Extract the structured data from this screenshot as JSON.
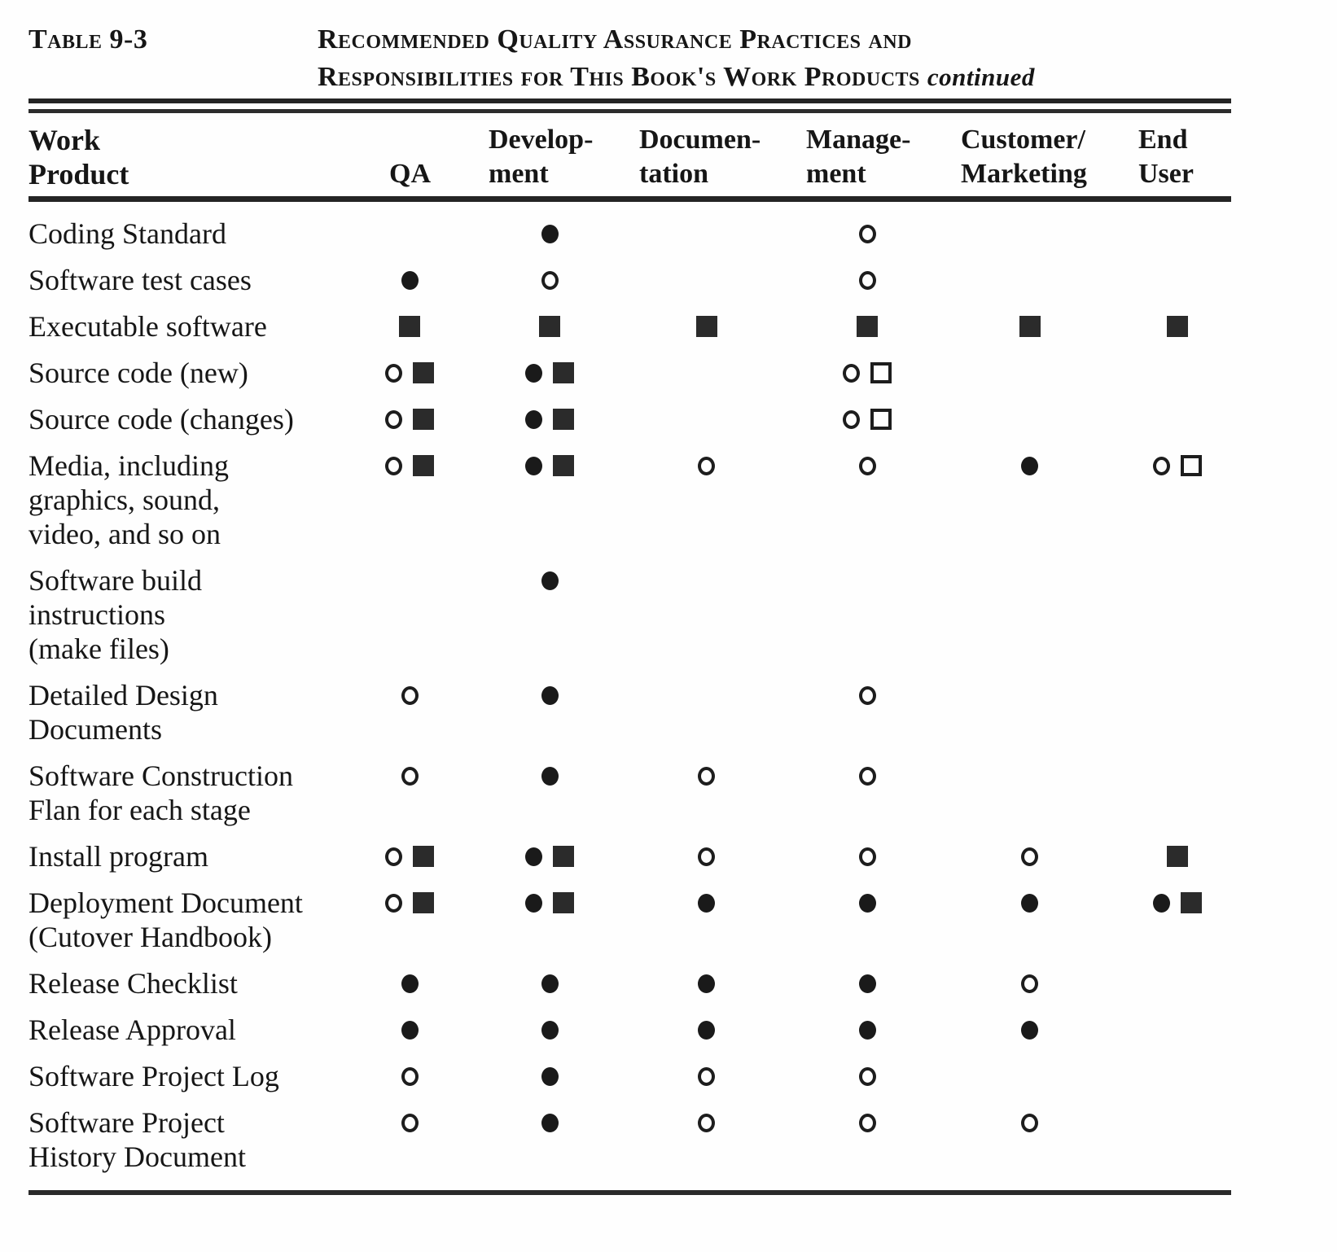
{
  "header": {
    "table_label": "Table 9-3",
    "title_line1": "Recommended Quality Assurance Practices and",
    "title_line2": "Responsibilities for This Book's Work Products",
    "title_continued": "continued"
  },
  "symbols": {
    "filled-circle": "●",
    "open-circle": "○",
    "filled-square": "■",
    "open-square": "□"
  },
  "table": {
    "columns": [
      {
        "l1": "Work",
        "l2": "Product"
      },
      {
        "l1": "",
        "l2": "QA"
      },
      {
        "l1": "Develop-",
        "l2": "ment"
      },
      {
        "l1": "Documen-",
        "l2": "tation"
      },
      {
        "l1": "Manage-",
        "l2": "ment"
      },
      {
        "l1": "Customer/",
        "l2": "Marketing"
      },
      {
        "l1": "End",
        "l2": "User"
      }
    ],
    "rows": [
      {
        "name_lines": [
          "Coding Standard"
        ],
        "cells": [
          [],
          [
            "filled-circle"
          ],
          [],
          [
            "open-circle"
          ],
          [],
          []
        ]
      },
      {
        "name_lines": [
          "Software test cases"
        ],
        "cells": [
          [
            "filled-circle"
          ],
          [
            "open-circle"
          ],
          [],
          [
            "open-circle"
          ],
          [],
          []
        ]
      },
      {
        "name_lines": [
          "Executable software"
        ],
        "cells": [
          [
            "filled-square"
          ],
          [
            "filled-square"
          ],
          [
            "filled-square"
          ],
          [
            "filled-square"
          ],
          [
            "filled-square"
          ],
          [
            "filled-square"
          ]
        ]
      },
      {
        "name_lines": [
          "Source code (new)"
        ],
        "cells": [
          [
            "open-circle",
            "filled-square"
          ],
          [
            "filled-circle",
            "filled-square"
          ],
          [],
          [
            "open-circle",
            "open-square"
          ],
          [],
          []
        ]
      },
      {
        "name_lines": [
          "Source code (changes)"
        ],
        "cells": [
          [
            "open-circle",
            "filled-square"
          ],
          [
            "filled-circle",
            "filled-square"
          ],
          [],
          [
            "open-circle",
            "open-square"
          ],
          [],
          []
        ]
      },
      {
        "name_lines": [
          "Media, including",
          "graphics, sound,",
          "video, and so on"
        ],
        "cells": [
          [
            "open-circle",
            "filled-square"
          ],
          [
            "filled-circle",
            "filled-square"
          ],
          [
            "open-circle"
          ],
          [
            "open-circle"
          ],
          [
            "filled-circle"
          ],
          [
            "open-circle",
            "open-square"
          ]
        ]
      },
      {
        "name_lines": [
          "Software build",
          "instructions",
          "(make files)"
        ],
        "cells": [
          [],
          [
            "filled-circle"
          ],
          [],
          [],
          [],
          []
        ]
      },
      {
        "name_lines": [
          "Detailed Design",
          "Documents"
        ],
        "cells": [
          [
            "open-circle"
          ],
          [
            "filled-circle"
          ],
          [],
          [
            "open-circle"
          ],
          [],
          []
        ]
      },
      {
        "name_lines": [
          "Software Construction",
          "Flan for each stage"
        ],
        "cells": [
          [
            "open-circle"
          ],
          [
            "filled-circle"
          ],
          [
            "open-circle"
          ],
          [
            "open-circle"
          ],
          [],
          []
        ]
      },
      {
        "name_lines": [
          "Install program"
        ],
        "cells": [
          [
            "open-circle",
            "filled-square"
          ],
          [
            "filled-circle",
            "filled-square"
          ],
          [
            "open-circle"
          ],
          [
            "open-circle"
          ],
          [
            "open-circle"
          ],
          [
            "filled-square"
          ]
        ]
      },
      {
        "name_lines": [
          "Deployment Document",
          "(Cutover Handbook)"
        ],
        "cells": [
          [
            "open-circle",
            "filled-square"
          ],
          [
            "filled-circle",
            "filled-square"
          ],
          [
            "filled-circle"
          ],
          [
            "filled-circle"
          ],
          [
            "filled-circle"
          ],
          [
            "filled-circle",
            "filled-square"
          ]
        ]
      },
      {
        "name_lines": [
          "Release Checklist"
        ],
        "cells": [
          [
            "filled-circle"
          ],
          [
            "filled-circle"
          ],
          [
            "filled-circle"
          ],
          [
            "filled-circle"
          ],
          [
            "open-circle"
          ],
          []
        ]
      },
      {
        "name_lines": [
          "Release Approval"
        ],
        "cells": [
          [
            "filled-circle"
          ],
          [
            "filled-circle"
          ],
          [
            "filled-circle"
          ],
          [
            "filled-circle"
          ],
          [
            "filled-circle"
          ],
          []
        ]
      },
      {
        "name_lines": [
          "Software Project Log"
        ],
        "cells": [
          [
            "open-circle"
          ],
          [
            "filled-circle"
          ],
          [
            "open-circle"
          ],
          [
            "open-circle"
          ],
          [],
          []
        ]
      },
      {
        "name_lines": [
          "Software Project",
          "History Document"
        ],
        "cells": [
          [
            "open-circle"
          ],
          [
            "filled-circle"
          ],
          [
            "open-circle"
          ],
          [
            "open-circle"
          ],
          [
            "open-circle"
          ],
          []
        ]
      }
    ]
  }
}
